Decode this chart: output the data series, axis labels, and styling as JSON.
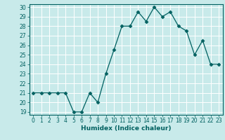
{
  "x": [
    0,
    1,
    2,
    3,
    4,
    5,
    6,
    7,
    8,
    9,
    10,
    11,
    12,
    13,
    14,
    15,
    16,
    17,
    18,
    19,
    20,
    21,
    22,
    23
  ],
  "y": [
    21,
    21,
    21,
    21,
    21,
    19,
    19,
    21,
    20,
    23,
    25.5,
    28,
    28,
    29.5,
    28.5,
    30,
    29,
    29.5,
    28,
    27.5,
    25,
    26.5,
    24,
    24
  ],
  "line_color": "#006060",
  "marker": "D",
  "marker_size": 2.5,
  "bg_color": "#c8eaea",
  "grid_color": "#ffffff",
  "xlabel": "Humidex (Indice chaleur)",
  "ylim_min": 19,
  "ylim_max": 30,
  "xlim_min": 0,
  "xlim_max": 23,
  "yticks": [
    19,
    20,
    21,
    22,
    23,
    24,
    25,
    26,
    27,
    28,
    29,
    30
  ],
  "xticks": [
    0,
    1,
    2,
    3,
    4,
    5,
    6,
    7,
    8,
    9,
    10,
    11,
    12,
    13,
    14,
    15,
    16,
    17,
    18,
    19,
    20,
    21,
    22,
    23
  ],
  "tick_fontsize": 5.5,
  "xlabel_fontsize": 6.5,
  "label_color": "#006060"
}
